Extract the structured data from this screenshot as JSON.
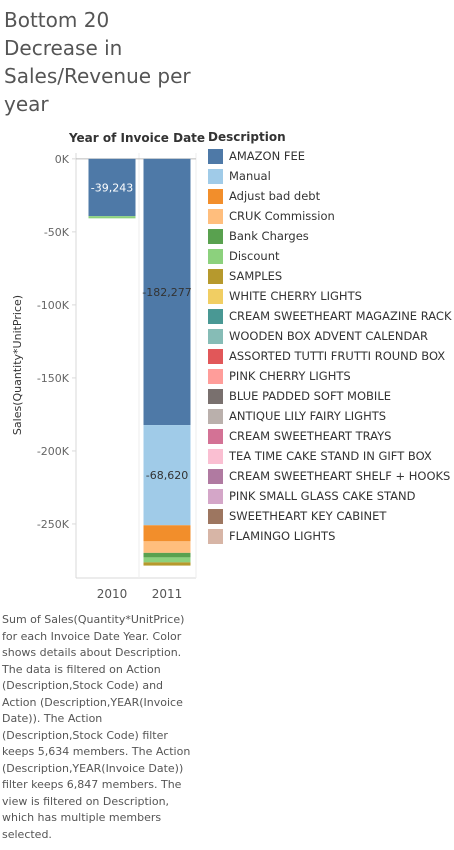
{
  "title": "Bottom 20 Decrease in Sales/Revenue per year",
  "caption": "Sum of Sales(Quantity*UnitPrice) for each Invoice Date Year.  Color shows details about Description. The data is filtered on Action (Description,Stock Code) and Action (Description,YEAR(Invoice Date)). The Action (Description,Stock Code) filter keeps 5,634 members. The Action (Description,YEAR(Invoice Date)) filter keeps 6,847 members. The view is filtered on Description, which has multiple members selected.",
  "legend": {
    "title": "Description",
    "items": [
      {
        "label": "AMAZON FEE",
        "color": "#4e79a7"
      },
      {
        "label": "Manual",
        "color": "#a0cbe8"
      },
      {
        "label": "Adjust bad debt",
        "color": "#f28e2b"
      },
      {
        "label": "CRUK Commission",
        "color": "#ffbe7d"
      },
      {
        "label": "Bank Charges",
        "color": "#59a14f"
      },
      {
        "label": "Discount",
        "color": "#8cd17d"
      },
      {
        "label": "SAMPLES",
        "color": "#b6992d"
      },
      {
        "label": "WHITE CHERRY LIGHTS",
        "color": "#f1ce63"
      },
      {
        "label": "CREAM SWEETHEART MAGAZINE RACK",
        "color": "#499894"
      },
      {
        "label": "WOODEN BOX ADVENT CALENDAR",
        "color": "#86bcb6"
      },
      {
        "label": "ASSORTED TUTTI FRUTTI ROUND BOX",
        "color": "#e15759"
      },
      {
        "label": "PINK CHERRY LIGHTS",
        "color": "#ff9d9a"
      },
      {
        "label": "BLUE PADDED SOFT MOBILE",
        "color": "#79706e"
      },
      {
        "label": "ANTIQUE LILY FAIRY LIGHTS",
        "color": "#bab0ac"
      },
      {
        "label": "CREAM SWEETHEART TRAYS",
        "color": "#d37295"
      },
      {
        "label": "TEA TIME CAKE STAND IN GIFT BOX",
        "color": "#fabfd2"
      },
      {
        "label": "CREAM SWEETHEART SHELF + HOOKS",
        "color": "#b07aa1"
      },
      {
        "label": "PINK SMALL GLASS CAKE STAND",
        "color": "#d4a6c8"
      },
      {
        "label": "SWEETHEART KEY CABINET",
        "color": "#9d7660"
      },
      {
        "label": "FLAMINGO LIGHTS",
        "color": "#d7b5a6"
      }
    ]
  },
  "chart_data": {
    "type": "bar",
    "stacked": true,
    "column_header": "Year of Invoice Date",
    "ylabel": "Sales(Quantity*UnitPrice)",
    "categories": [
      "2010",
      "2011"
    ],
    "ylim": [
      -287000,
      4000
    ],
    "yticks": [
      0,
      -50000,
      -100000,
      -150000,
      -200000,
      -250000
    ],
    "ytick_labels": [
      "0K",
      "-50K",
      "-100K",
      "-150K",
      "-200K",
      "-250K"
    ],
    "grid": false,
    "series": [
      {
        "name": "AMAZON FEE",
        "values": [
          -39243,
          -182277
        ]
      },
      {
        "name": "Manual",
        "values": [
          0,
          -68620
        ]
      },
      {
        "name": "Adjust bad debt",
        "values": [
          0,
          -11000
        ]
      },
      {
        "name": "CRUK Commission",
        "values": [
          0,
          -7900
        ]
      },
      {
        "name": "Bank Charges",
        "values": [
          0,
          -3100
        ]
      },
      {
        "name": "Discount",
        "values": [
          -1500,
          -3400
        ]
      },
      {
        "name": "SAMPLES",
        "values": [
          0,
          -2200
        ]
      }
    ],
    "data_labels": [
      {
        "category": "2010",
        "series": "AMAZON FEE",
        "text": "-39,243"
      },
      {
        "category": "2011",
        "series": "Manual",
        "text": "-68,620"
      },
      {
        "category": "2011",
        "series": "AMAZON FEE",
        "text": "-182,277"
      }
    ]
  }
}
